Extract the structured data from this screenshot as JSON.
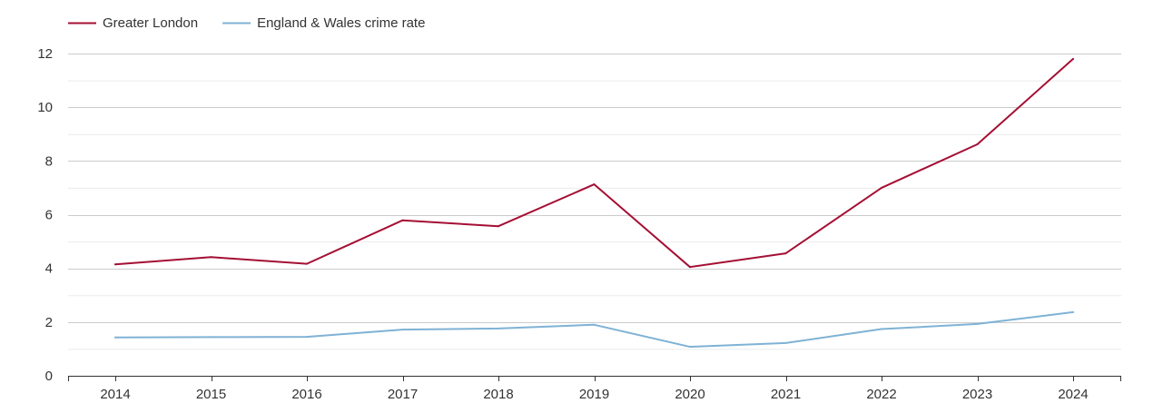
{
  "chart_data": {
    "type": "line",
    "title": "",
    "xlabel": "",
    "ylabel": "",
    "x": [
      2014,
      2015,
      2016,
      2017,
      2018,
      2019,
      2020,
      2021,
      2022,
      2023,
      2024
    ],
    "yticks": [
      0,
      2,
      4,
      6,
      8,
      10,
      12
    ],
    "ylim": [
      0,
      12
    ],
    "grid": true,
    "legend_position": "top-left",
    "series": [
      {
        "name": "Greater London",
        "color": "#a50f34",
        "values": [
          4.15,
          4.42,
          4.17,
          5.79,
          5.57,
          7.13,
          4.05,
          4.56,
          7.0,
          8.62,
          11.8
        ]
      },
      {
        "name": "England & Wales crime rate",
        "color": "#7fb2d5",
        "values": [
          1.43,
          1.44,
          1.45,
          1.72,
          1.76,
          1.9,
          1.08,
          1.22,
          1.74,
          1.93,
          2.37
        ]
      }
    ]
  }
}
